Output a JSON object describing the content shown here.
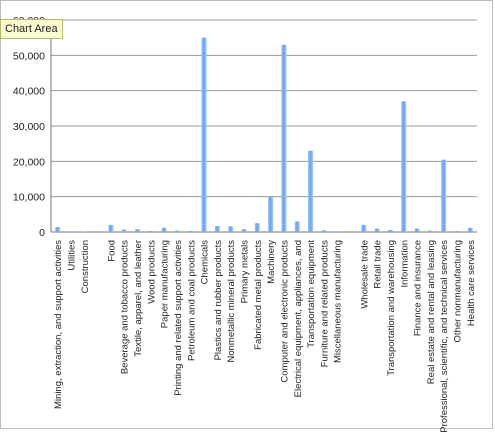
{
  "tooltip": {
    "label": "Chart Area"
  },
  "chart_data": {
    "type": "bar",
    "title": "",
    "xlabel": "",
    "ylabel": "",
    "ylim": [
      0,
      60000
    ],
    "yticks": [
      0,
      10000,
      20000,
      30000,
      40000,
      50000,
      60000
    ],
    "ytick_labels": [
      "0",
      "10,000",
      "20,000",
      "30,000",
      "40,000",
      "50,000",
      "60,000"
    ],
    "grid": true,
    "legend": "none",
    "bar_color": "#6aa2e8",
    "categories": [
      "Mining, extraction, and support activities",
      "Utilities",
      "Construction",
      "",
      "Food",
      "Beverage and tobacco products",
      "Textile, apparel, and leather",
      "Wood products",
      "Paper manufacturing",
      "Printing and related support activities",
      "Petroleum and coal products",
      "Chemicals",
      "Plastics and rubber products",
      "Nonmetallic mineral products",
      "Primary metals",
      "Fabricated metal products",
      "Machinery",
      "Computer and electronic products",
      "Electrical equipment, appliances, and",
      "Transportation equipment",
      "Furniture and related products",
      "Miscellaneous manufacturing",
      "",
      "Wholesale trade",
      "Retail trade",
      "Transportation and warehousing",
      "Information",
      "Finance and insurance",
      "Real estate and rental and leasing",
      "Professional, scientific, and technical services",
      "Other nonmanufacturing",
      "Health care services"
    ],
    "values": [
      1400,
      200,
      100,
      0,
      2000,
      700,
      800,
      300,
      1200,
      400,
      300,
      55000,
      1700,
      1600,
      800,
      2500,
      10000,
      53000,
      3000,
      23000,
      500,
      200,
      0,
      2000,
      1000,
      600,
      37000,
      1000,
      400,
      20500,
      300,
      1200
    ]
  }
}
